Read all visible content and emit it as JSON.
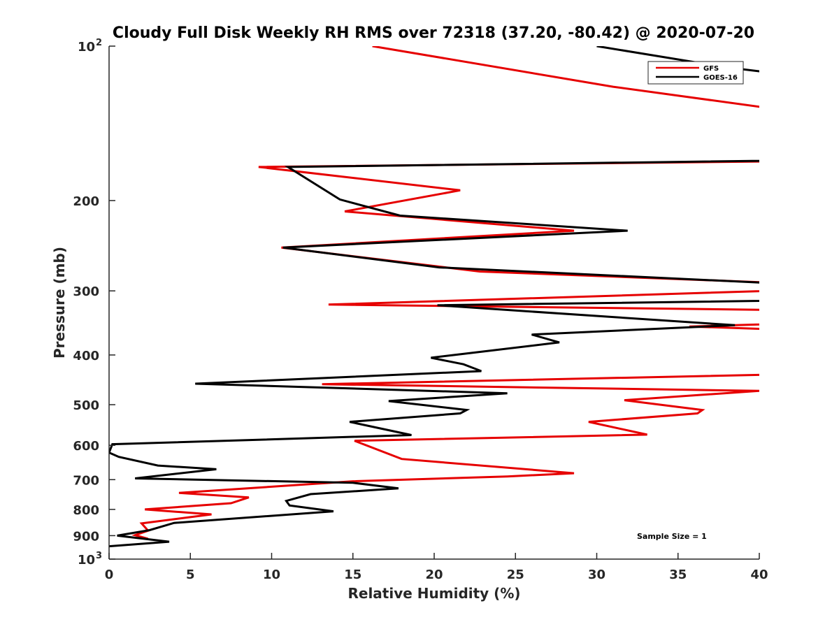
{
  "chart_data": {
    "type": "line",
    "title": "Cloudy Full Disk Weekly RH RMS over 72318 (37.20, -80.42) @ 2020-07-20",
    "xlabel": "Relative Humidity (%)",
    "ylabel": "Pressure (mb)",
    "xlim": [
      0,
      40
    ],
    "ylim": [
      100,
      1000
    ],
    "yscale": "log",
    "yreversed": true,
    "grid": false,
    "xticks": [
      0,
      5,
      10,
      15,
      20,
      25,
      30,
      35,
      40
    ],
    "xtick_labels": [
      "0",
      "5",
      "10",
      "15",
      "20",
      "25",
      "30",
      "35",
      "40"
    ],
    "yticks": [
      100,
      200,
      300,
      400,
      500,
      600,
      700,
      800,
      900,
      1000
    ],
    "ytick_labels": [
      {
        "base": "10",
        "exp": "2"
      },
      {
        "base": "200",
        "exp": ""
      },
      {
        "base": "300",
        "exp": ""
      },
      {
        "base": "400",
        "exp": ""
      },
      {
        "base": "500",
        "exp": ""
      },
      {
        "base": "600",
        "exp": ""
      },
      {
        "base": "700",
        "exp": ""
      },
      {
        "base": "800",
        "exp": ""
      },
      {
        "base": "900",
        "exp": ""
      },
      {
        "base": "10",
        "exp": "3"
      }
    ],
    "legend": {
      "position": "top-right",
      "entries": [
        "GFS",
        "GOES-16"
      ]
    },
    "annotation": "Sample Size = 1",
    "series": [
      {
        "name": "GFS",
        "color": "#e60000",
        "points": [
          [
            16.2,
            100
          ],
          [
            31.0,
            120
          ],
          [
            45.0,
            138
          ],
          [
            62.0,
            165
          ],
          [
            9.2,
            172
          ],
          [
            21.6,
            191
          ],
          [
            14.5,
            210
          ],
          [
            28.6,
            229
          ],
          [
            10.6,
            247
          ],
          [
            22.8,
            275
          ],
          [
            48.0,
            295
          ],
          [
            13.5,
            319
          ],
          [
            52.0,
            330
          ],
          [
            45.0,
            345
          ],
          [
            35.7,
            352
          ],
          [
            45.0,
            360
          ],
          [
            50.0,
            380
          ],
          [
            45.0,
            434
          ],
          [
            13.1,
            456
          ],
          [
            40.0,
            470
          ],
          [
            31.7,
            490
          ],
          [
            36.5,
            512
          ],
          [
            36.2,
            520
          ],
          [
            29.5,
            540
          ],
          [
            33.1,
            572
          ],
          [
            15.1,
            588
          ],
          [
            18.0,
            638
          ],
          [
            28.6,
            680
          ],
          [
            24.5,
            690
          ],
          [
            15.0,
            705
          ],
          [
            4.3,
            743
          ],
          [
            8.6,
            758
          ],
          [
            7.5,
            778
          ],
          [
            2.2,
            800
          ],
          [
            6.3,
            818
          ],
          [
            2.0,
            852
          ],
          [
            2.4,
            880
          ],
          [
            1.6,
            898
          ],
          [
            2.4,
            913
          ]
        ]
      },
      {
        "name": "GOES-16",
        "color": "#000000",
        "points": [
          [
            30.0,
            100
          ],
          [
            38.0,
            110
          ],
          [
            45.0,
            117
          ],
          [
            55.0,
            165
          ],
          [
            11.0,
            172
          ],
          [
            14.2,
            199
          ],
          [
            17.9,
            214
          ],
          [
            31.9,
            229
          ],
          [
            10.7,
            247
          ],
          [
            20.3,
            270
          ],
          [
            48.0,
            297
          ],
          [
            52.0,
            310
          ],
          [
            20.2,
            320
          ],
          [
            38.5,
            350
          ],
          [
            26.0,
            365
          ],
          [
            27.7,
            378
          ],
          [
            19.8,
            405
          ],
          [
            21.8,
            417
          ],
          [
            22.9,
            430
          ],
          [
            5.3,
            455
          ],
          [
            24.5,
            475
          ],
          [
            17.2,
            492
          ],
          [
            22.0,
            512
          ],
          [
            21.6,
            520
          ],
          [
            14.8,
            540
          ],
          [
            18.6,
            573
          ],
          [
            0.2,
            597
          ],
          [
            0.0,
            620
          ],
          [
            0.6,
            632
          ],
          [
            3.0,
            657
          ],
          [
            6.6,
            668
          ],
          [
            1.6,
            696
          ],
          [
            15.0,
            710
          ],
          [
            17.8,
            728
          ],
          [
            12.4,
            747
          ],
          [
            10.9,
            770
          ],
          [
            11.1,
            786
          ],
          [
            13.8,
            807
          ],
          [
            4.0,
            850
          ],
          [
            2.5,
            878
          ],
          [
            0.5,
            900
          ],
          [
            3.7,
            925
          ],
          [
            0.0,
            944
          ]
        ]
      }
    ]
  }
}
